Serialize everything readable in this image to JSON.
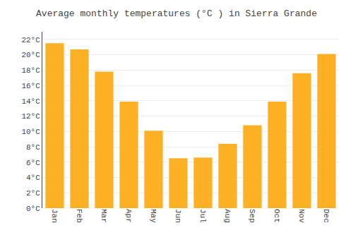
{
  "chart_data": {
    "type": "bar",
    "title": "Average monthly temperatures (°C ) in Sierra Grande",
    "categories": [
      "Jan",
      "Feb",
      "Mar",
      "Apr",
      "May",
      "Jun",
      "Jul",
      "Aug",
      "Sep",
      "Oct",
      "Nov",
      "Dec"
    ],
    "values": [
      21.5,
      20.7,
      17.8,
      13.9,
      10.1,
      6.5,
      6.6,
      8.4,
      10.8,
      13.9,
      17.6,
      20.1
    ],
    "color": "#FBB123",
    "ylim": [
      0,
      23
    ],
    "yticks": [
      {
        "value": 0,
        "label": "0°C"
      },
      {
        "value": 2,
        "label": "2°C"
      },
      {
        "value": 4,
        "label": "4°C"
      },
      {
        "value": 6,
        "label": "6°C"
      },
      {
        "value": 8,
        "label": "8°C"
      },
      {
        "value": 10,
        "label": "10°C"
      },
      {
        "value": 12,
        "label": "12°C"
      },
      {
        "value": 14,
        "label": "14°C"
      },
      {
        "value": 16,
        "label": "16°C"
      },
      {
        "value": 18,
        "label": "18°C"
      },
      {
        "value": 20,
        "label": "20°C"
      },
      {
        "value": 22,
        "label": "22°C"
      }
    ],
    "grid": true
  }
}
